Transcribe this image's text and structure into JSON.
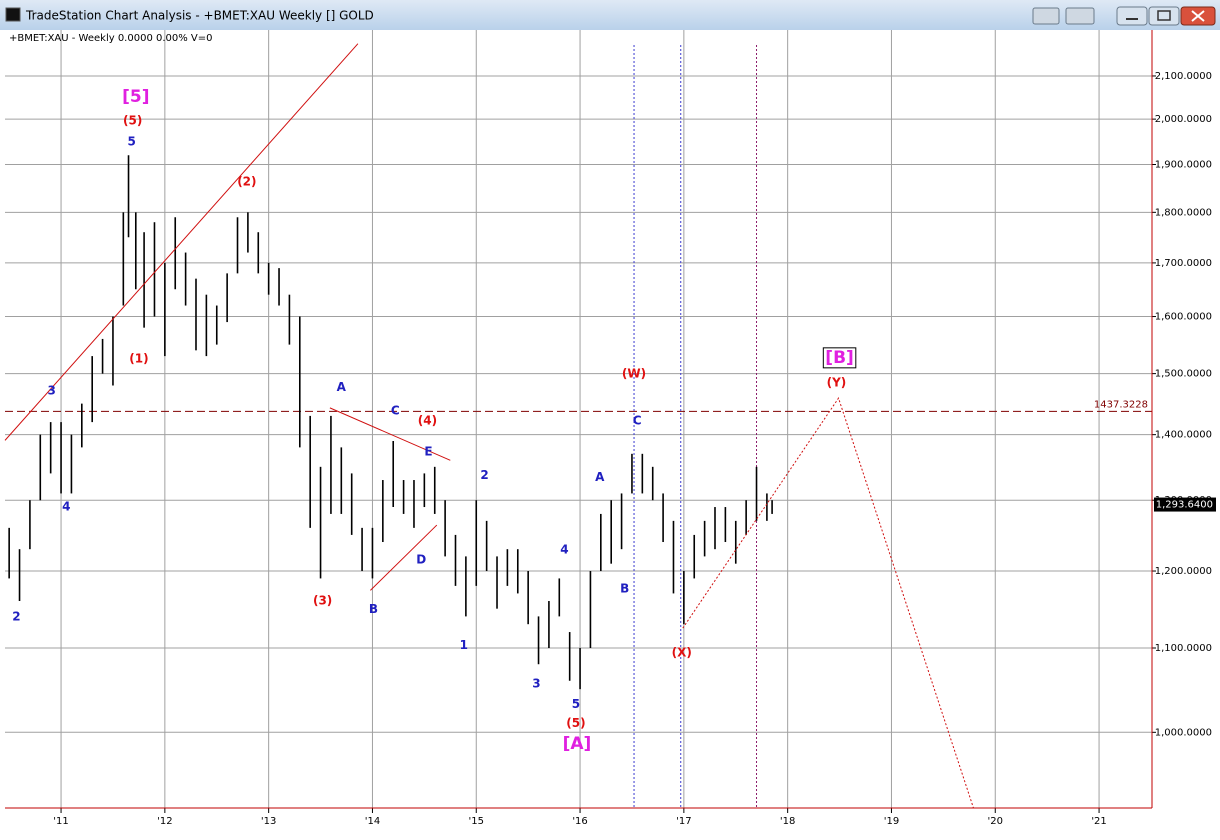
{
  "window": {
    "title": "TradeStation Chart Analysis - +BMET:XAU Weekly [] GOLD"
  },
  "chart_data": {
    "type": "ohlc",
    "subtitle": "+BMET:XAU - Weekly  0.0000  0.00%  V=0",
    "log_scale": true,
    "grid": true,
    "bar_color": "#000000",
    "xlim": [
      2010.46,
      2021.51
    ],
    "ylim": [
      918,
      2212
    ],
    "xticks": [
      {
        "value": 2011,
        "label": "'11"
      },
      {
        "value": 2012,
        "label": "'12"
      },
      {
        "value": 2013,
        "label": "'13"
      },
      {
        "value": 2014,
        "label": "'14"
      },
      {
        "value": 2015,
        "label": "'15"
      },
      {
        "value": 2016,
        "label": "'16"
      },
      {
        "value": 2017,
        "label": "'17"
      },
      {
        "value": 2018,
        "label": "'18"
      },
      {
        "value": 2019,
        "label": "'19"
      },
      {
        "value": 2020,
        "label": "'20"
      },
      {
        "value": 2021,
        "label": "'21"
      }
    ],
    "yticks": [
      {
        "value": 1000,
        "label": "1,000.0000"
      },
      {
        "value": 1100,
        "label": "1,100.0000"
      },
      {
        "value": 1200,
        "label": "1,200.0000"
      },
      {
        "value": 1300,
        "label": "1,300.0000"
      },
      {
        "value": 1400,
        "label": "1,400.0000"
      },
      {
        "value": 1500,
        "label": "1,500.0000"
      },
      {
        "value": 1600,
        "label": "1,600.0000"
      },
      {
        "value": 1700,
        "label": "1,700.0000"
      },
      {
        "value": 1800,
        "label": "1,800.0000"
      },
      {
        "value": 1900,
        "label": "1,900.0000"
      },
      {
        "value": 2000,
        "label": "2,000.0000"
      },
      {
        "value": 2100,
        "label": "2,100.0000"
      }
    ],
    "x": [
      2010.5,
      2010.6,
      2010.7,
      2010.8,
      2010.9,
      2011.0,
      2011.1,
      2011.2,
      2011.3,
      2011.4,
      2011.5,
      2011.6,
      2011.65,
      2011.72,
      2011.8,
      2011.9,
      2012.0,
      2012.1,
      2012.2,
      2012.3,
      2012.4,
      2012.5,
      2012.6,
      2012.7,
      2012.8,
      2012.9,
      2013.0,
      2013.1,
      2013.2,
      2013.3,
      2013.4,
      2013.5,
      2013.6,
      2013.7,
      2013.8,
      2013.9,
      2014.0,
      2014.1,
      2014.2,
      2014.3,
      2014.4,
      2014.5,
      2014.6,
      2014.7,
      2014.8,
      2014.9,
      2015.0,
      2015.1,
      2015.2,
      2015.3,
      2015.4,
      2015.5,
      2015.6,
      2015.7,
      2015.8,
      2015.9,
      2016.0,
      2016.1,
      2016.2,
      2016.3,
      2016.4,
      2016.5,
      2016.6,
      2016.7,
      2016.8,
      2016.9,
      2017.0,
      2017.1,
      2017.2,
      2017.3,
      2017.4,
      2017.5,
      2017.6,
      2017.7,
      2017.8,
      2017.85
    ],
    "low": [
      1190,
      1160,
      1230,
      1300,
      1340,
      1310,
      1310,
      1380,
      1420,
      1500,
      1480,
      1620,
      1750,
      1650,
      1580,
      1600,
      1530,
      1650,
      1620,
      1540,
      1530,
      1550,
      1590,
      1680,
      1720,
      1680,
      1640,
      1620,
      1550,
      1380,
      1260,
      1190,
      1280,
      1280,
      1250,
      1200,
      1190,
      1240,
      1290,
      1280,
      1260,
      1290,
      1280,
      1220,
      1180,
      1140,
      1180,
      1200,
      1150,
      1180,
      1170,
      1130,
      1080,
      1100,
      1140,
      1060,
      1050,
      1100,
      1200,
      1210,
      1230,
      1310,
      1310,
      1300,
      1240,
      1170,
      1130,
      1190,
      1220,
      1230,
      1240,
      1210,
      1250,
      1270,
      1270,
      1280
    ],
    "high": [
      1260,
      1230,
      1300,
      1400,
      1420,
      1420,
      1400,
      1450,
      1530,
      1560,
      1600,
      1800,
      1920,
      1800,
      1760,
      1780,
      1700,
      1790,
      1720,
      1670,
      1640,
      1620,
      1680,
      1790,
      1800,
      1760,
      1700,
      1690,
      1640,
      1600,
      1430,
      1350,
      1430,
      1380,
      1340,
      1260,
      1260,
      1330,
      1390,
      1330,
      1330,
      1340,
      1350,
      1300,
      1250,
      1220,
      1300,
      1270,
      1220,
      1230,
      1230,
      1200,
      1140,
      1160,
      1190,
      1120,
      1100,
      1200,
      1280,
      1300,
      1310,
      1370,
      1370,
      1350,
      1310,
      1270,
      1200,
      1250,
      1270,
      1290,
      1290,
      1270,
      1300,
      1350,
      1310,
      1300
    ],
    "last_price": {
      "value": 1293.64,
      "label": "1,293.6400"
    },
    "levels": [
      {
        "value": 1437.3228,
        "color": "#800000"
      }
    ],
    "vlines": [
      {
        "x": 2016.52,
        "color": "#3a3ad0"
      },
      {
        "x": 2016.97,
        "color": "#3a3ad0"
      },
      {
        "x": 2017.7,
        "color": "#8a1a6a"
      }
    ],
    "lines": [
      {
        "points": [
          [
            2010.46,
            1391
          ],
          [
            2013.86,
            2178
          ]
        ],
        "color": "#d01010",
        "dash": false
      },
      {
        "points": [
          [
            2013.59,
            1443
          ],
          [
            2014.75,
            1360
          ]
        ],
        "color": "#d01010",
        "dash": false
      },
      {
        "points": [
          [
            2013.98,
            1174
          ],
          [
            2014.62,
            1264
          ]
        ],
        "color": "#d01010",
        "dash": false
      },
      {
        "points": [
          [
            2016.99,
            1125
          ],
          [
            2018.49,
            1459
          ],
          [
            2019.79,
            918
          ]
        ],
        "color": "#d01010",
        "dash": true
      }
    ],
    "annotations": [
      {
        "text": "[5]",
        "x": 2011.72,
        "y": 2051,
        "color": "#e020e0"
      },
      {
        "text": "(5)",
        "x": 2011.69,
        "y": 1996,
        "color": "#e01010"
      },
      {
        "text": "5",
        "x": 2011.68,
        "y": 1949,
        "color": "#2020c0"
      },
      {
        "text": "(2)",
        "x": 2012.79,
        "y": 1863,
        "color": "#e01010"
      },
      {
        "text": "(1)",
        "x": 2011.75,
        "y": 1525,
        "color": "#e01010"
      },
      {
        "text": "3",
        "x": 2010.91,
        "y": 1471,
        "color": "#2020c0"
      },
      {
        "text": "4",
        "x": 2011.05,
        "y": 1290,
        "color": "#2020c0"
      },
      {
        "text": "2",
        "x": 2010.57,
        "y": 1139,
        "color": "#2020c0"
      },
      {
        "text": "(3)",
        "x": 2013.52,
        "y": 1160,
        "color": "#e01010"
      },
      {
        "text": "A",
        "x": 2013.7,
        "y": 1477,
        "color": "#2020c0"
      },
      {
        "text": "C",
        "x": 2014.22,
        "y": 1438,
        "color": "#2020c0"
      },
      {
        "text": "(4)",
        "x": 2014.53,
        "y": 1422,
        "color": "#e01010"
      },
      {
        "text": "E",
        "x": 2014.54,
        "y": 1373,
        "color": "#2020c0"
      },
      {
        "text": "D",
        "x": 2014.47,
        "y": 1215,
        "color": "#2020c0"
      },
      {
        "text": "B",
        "x": 2014.01,
        "y": 1149,
        "color": "#2020c0"
      },
      {
        "text": "2",
        "x": 2015.08,
        "y": 1337,
        "color": "#2020c0"
      },
      {
        "text": "1",
        "x": 2014.88,
        "y": 1103,
        "color": "#2020c0"
      },
      {
        "text": "4",
        "x": 2015.85,
        "y": 1229,
        "color": "#2020c0"
      },
      {
        "text": "3",
        "x": 2015.58,
        "y": 1056,
        "color": "#2020c0"
      },
      {
        "text": "5",
        "x": 2015.96,
        "y": 1032,
        "color": "#2020c0"
      },
      {
        "text": "(5)",
        "x": 2015.96,
        "y": 1010,
        "color": "#e01010"
      },
      {
        "text": "[A]",
        "x": 2015.97,
        "y": 987,
        "color": "#e020e0"
      },
      {
        "text": "(W)",
        "x": 2016.52,
        "y": 1499,
        "color": "#e01010"
      },
      {
        "text": "C",
        "x": 2016.55,
        "y": 1422,
        "color": "#2020c0"
      },
      {
        "text": "A",
        "x": 2016.19,
        "y": 1334,
        "color": "#2020c0"
      },
      {
        "text": "B",
        "x": 2016.43,
        "y": 1176,
        "color": "#2020c0"
      },
      {
        "text": "(X)",
        "x": 2016.98,
        "y": 1094,
        "color": "#e01010"
      },
      {
        "text": "[B]",
        "x": 2018.5,
        "y": 1527,
        "color": "#e020e0"
      },
      {
        "text": "(Y)",
        "x": 2018.47,
        "y": 1484,
        "color": "#e01010"
      }
    ]
  }
}
